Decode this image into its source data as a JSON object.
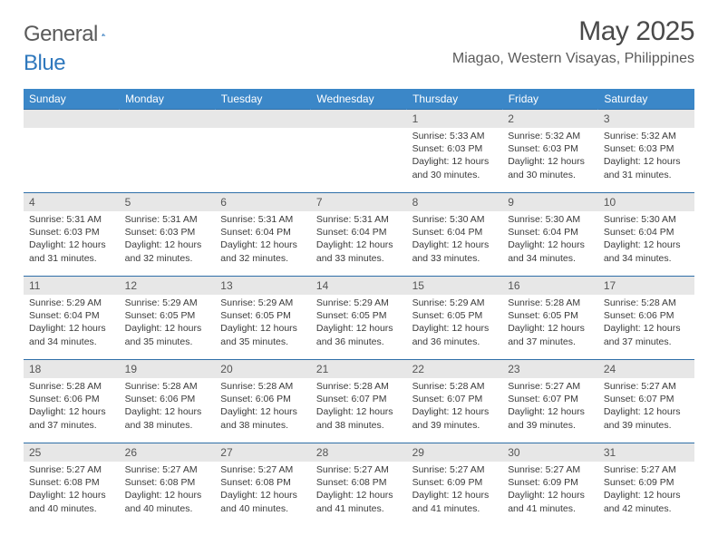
{
  "brand": {
    "name1": "General",
    "name2": "Blue"
  },
  "title": "May 2025",
  "location": "Miagao, Western Visayas, Philippines",
  "colors": {
    "header_bg": "#3b87c8",
    "header_text": "#ffffff",
    "row_border": "#2f6fa8",
    "daynum_bg": "#e7e7e7",
    "text": "#3a3a3a",
    "brand_blue": "#2f78bd"
  },
  "typography": {
    "month_fontsize": 30,
    "location_fontsize": 16,
    "dayhead_fontsize": 12,
    "daynum_fontsize": 12,
    "info_fontsize": 10.5
  },
  "dayHeaders": [
    "Sunday",
    "Monday",
    "Tuesday",
    "Wednesday",
    "Thursday",
    "Friday",
    "Saturday"
  ],
  "weeks": [
    [
      null,
      null,
      null,
      null,
      {
        "n": "1",
        "sr": "5:33 AM",
        "ss": "6:03 PM",
        "dl": "12 hours and 30 minutes."
      },
      {
        "n": "2",
        "sr": "5:32 AM",
        "ss": "6:03 PM",
        "dl": "12 hours and 30 minutes."
      },
      {
        "n": "3",
        "sr": "5:32 AM",
        "ss": "6:03 PM",
        "dl": "12 hours and 31 minutes."
      }
    ],
    [
      {
        "n": "4",
        "sr": "5:31 AM",
        "ss": "6:03 PM",
        "dl": "12 hours and 31 minutes."
      },
      {
        "n": "5",
        "sr": "5:31 AM",
        "ss": "6:03 PM",
        "dl": "12 hours and 32 minutes."
      },
      {
        "n": "6",
        "sr": "5:31 AM",
        "ss": "6:04 PM",
        "dl": "12 hours and 32 minutes."
      },
      {
        "n": "7",
        "sr": "5:31 AM",
        "ss": "6:04 PM",
        "dl": "12 hours and 33 minutes."
      },
      {
        "n": "8",
        "sr": "5:30 AM",
        "ss": "6:04 PM",
        "dl": "12 hours and 33 minutes."
      },
      {
        "n": "9",
        "sr": "5:30 AM",
        "ss": "6:04 PM",
        "dl": "12 hours and 34 minutes."
      },
      {
        "n": "10",
        "sr": "5:30 AM",
        "ss": "6:04 PM",
        "dl": "12 hours and 34 minutes."
      }
    ],
    [
      {
        "n": "11",
        "sr": "5:29 AM",
        "ss": "6:04 PM",
        "dl": "12 hours and 34 minutes."
      },
      {
        "n": "12",
        "sr": "5:29 AM",
        "ss": "6:05 PM",
        "dl": "12 hours and 35 minutes."
      },
      {
        "n": "13",
        "sr": "5:29 AM",
        "ss": "6:05 PM",
        "dl": "12 hours and 35 minutes."
      },
      {
        "n": "14",
        "sr": "5:29 AM",
        "ss": "6:05 PM",
        "dl": "12 hours and 36 minutes."
      },
      {
        "n": "15",
        "sr": "5:29 AM",
        "ss": "6:05 PM",
        "dl": "12 hours and 36 minutes."
      },
      {
        "n": "16",
        "sr": "5:28 AM",
        "ss": "6:05 PM",
        "dl": "12 hours and 37 minutes."
      },
      {
        "n": "17",
        "sr": "5:28 AM",
        "ss": "6:06 PM",
        "dl": "12 hours and 37 minutes."
      }
    ],
    [
      {
        "n": "18",
        "sr": "5:28 AM",
        "ss": "6:06 PM",
        "dl": "12 hours and 37 minutes."
      },
      {
        "n": "19",
        "sr": "5:28 AM",
        "ss": "6:06 PM",
        "dl": "12 hours and 38 minutes."
      },
      {
        "n": "20",
        "sr": "5:28 AM",
        "ss": "6:06 PM",
        "dl": "12 hours and 38 minutes."
      },
      {
        "n": "21",
        "sr": "5:28 AM",
        "ss": "6:07 PM",
        "dl": "12 hours and 38 minutes."
      },
      {
        "n": "22",
        "sr": "5:28 AM",
        "ss": "6:07 PM",
        "dl": "12 hours and 39 minutes."
      },
      {
        "n": "23",
        "sr": "5:27 AM",
        "ss": "6:07 PM",
        "dl": "12 hours and 39 minutes."
      },
      {
        "n": "24",
        "sr": "5:27 AM",
        "ss": "6:07 PM",
        "dl": "12 hours and 39 minutes."
      }
    ],
    [
      {
        "n": "25",
        "sr": "5:27 AM",
        "ss": "6:08 PM",
        "dl": "12 hours and 40 minutes."
      },
      {
        "n": "26",
        "sr": "5:27 AM",
        "ss": "6:08 PM",
        "dl": "12 hours and 40 minutes."
      },
      {
        "n": "27",
        "sr": "5:27 AM",
        "ss": "6:08 PM",
        "dl": "12 hours and 40 minutes."
      },
      {
        "n": "28",
        "sr": "5:27 AM",
        "ss": "6:08 PM",
        "dl": "12 hours and 41 minutes."
      },
      {
        "n": "29",
        "sr": "5:27 AM",
        "ss": "6:09 PM",
        "dl": "12 hours and 41 minutes."
      },
      {
        "n": "30",
        "sr": "5:27 AM",
        "ss": "6:09 PM",
        "dl": "12 hours and 41 minutes."
      },
      {
        "n": "31",
        "sr": "5:27 AM",
        "ss": "6:09 PM",
        "dl": "12 hours and 42 minutes."
      }
    ]
  ],
  "labels": {
    "sunrise": "Sunrise: ",
    "sunset": "Sunset: ",
    "daylight": "Daylight: "
  }
}
